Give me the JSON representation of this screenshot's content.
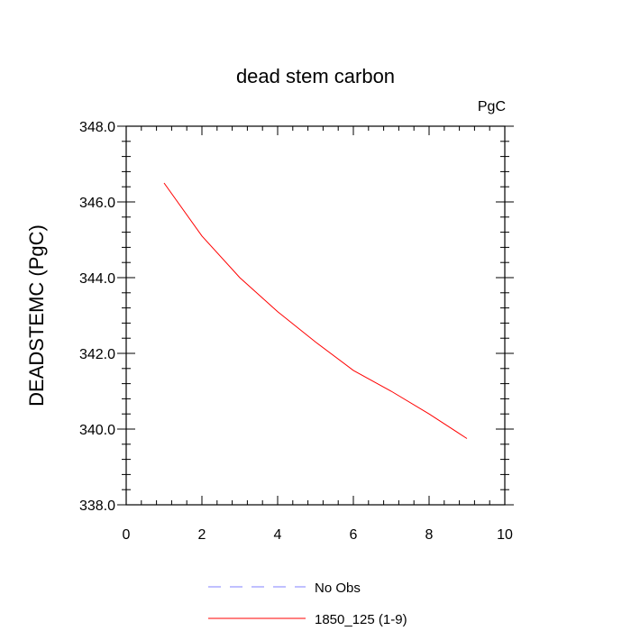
{
  "chart_data": {
    "type": "line",
    "title": "dead stem carbon",
    "units_label": "PgC",
    "xlabel": "",
    "ylabel": "DEADSTEMC  (PgC)",
    "xlim": [
      0,
      10
    ],
    "ylim": [
      338,
      348
    ],
    "x_ticks": [
      0,
      2,
      4,
      6,
      8,
      10
    ],
    "x_tick_labels": [
      "0",
      "2",
      "4",
      "6",
      "8",
      "10"
    ],
    "y_ticks": [
      338,
      340,
      342,
      344,
      346,
      348
    ],
    "y_tick_labels": [
      "338.0",
      "340.0",
      "342.0",
      "344.0",
      "346.0",
      "348.0"
    ],
    "grid": false,
    "legend_position": "bottom",
    "series": [
      {
        "name": "No Obs",
        "color": "#8080ff",
        "dash": "dashed",
        "x": [],
        "y": []
      },
      {
        "name": "1850_125 (1-9)",
        "color": "#ff0000",
        "dash": "solid",
        "x": [
          1,
          2,
          3,
          4,
          5,
          6,
          7,
          8,
          9
        ],
        "y": [
          346.5,
          345.1,
          344.0,
          343.1,
          342.3,
          341.55,
          341.0,
          340.4,
          339.75
        ]
      }
    ]
  }
}
